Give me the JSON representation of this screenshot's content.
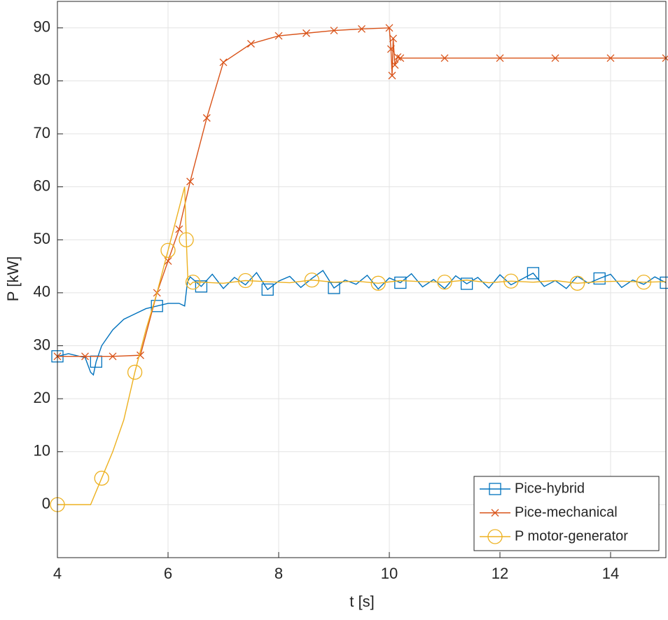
{
  "chart_data": {
    "type": "line",
    "xlabel": "t [s]",
    "ylabel": "P [kW]",
    "xlim": [
      4,
      15
    ],
    "xticks": [
      4,
      6,
      8,
      10,
      12,
      14
    ],
    "ylim": [
      -10,
      95
    ],
    "yticks": [
      0,
      10,
      20,
      30,
      40,
      50,
      60,
      70,
      80,
      90
    ],
    "grid": true,
    "legend": "lower right",
    "series": [
      {
        "name": "Pice-hybrid",
        "color": "#0072bd",
        "marker": "square",
        "x": [
          4,
          4.2,
          4.4,
          4.5,
          4.6,
          4.65,
          4.7,
          4.8,
          5,
          5.2,
          5.4,
          5.6,
          5.8,
          6,
          6.2,
          6.3,
          6.35,
          6.4,
          6.6,
          6.8,
          7.0,
          7.2,
          7.4,
          7.6,
          7.8,
          8.0,
          8.2,
          8.4,
          8.6,
          8.8,
          9.0,
          9.2,
          9.4,
          9.6,
          9.8,
          10.0,
          10.2,
          10.4,
          10.6,
          10.8,
          11.0,
          11.2,
          11.4,
          11.6,
          11.8,
          12.0,
          12.2,
          12.4,
          12.6,
          12.8,
          13.0,
          13.2,
          13.4,
          13.6,
          13.8,
          14.0,
          14.2,
          14.4,
          14.6,
          14.8,
          15.0
        ],
        "values": [
          28,
          28.5,
          28,
          27.8,
          25,
          24.5,
          27,
          30,
          33,
          35,
          36,
          37,
          37.5,
          38,
          38,
          37.5,
          42,
          43,
          41.2,
          43.5,
          40.8,
          42.9,
          41.5,
          43.8,
          40.6,
          42.2,
          43.1,
          41.0,
          42.7,
          44.2,
          40.9,
          42.4,
          41.6,
          43.3,
          40.7,
          42.8,
          41.9,
          43.6,
          41.1,
          42.5,
          40.8,
          43.2,
          41.7,
          42.9,
          40.9,
          43.4,
          41.5,
          42.6,
          43.7,
          41.2,
          42.3,
          40.8,
          43.1,
          41.8,
          42.7,
          43.5,
          41.0,
          42.4,
          41.6,
          43.0,
          41.9
        ]
      },
      {
        "name": "Pice-mechanical",
        "color": "#d95319",
        "marker": "x",
        "x": [
          4,
          4.5,
          5,
          5.5,
          5.8,
          6,
          6.2,
          6.4,
          6.7,
          7,
          7.5,
          8,
          8.5,
          9,
          9.5,
          10,
          10.03,
          10.05,
          10.07,
          10.1,
          10.15,
          10.2,
          11,
          12,
          13,
          14,
          15
        ],
        "values": [
          28,
          28,
          28,
          28.2,
          40,
          46,
          52,
          61,
          73,
          83.5,
          87,
          88.5,
          89,
          89.5,
          89.8,
          90,
          86,
          81,
          88,
          83,
          84.5,
          84.3,
          84.3,
          84.3,
          84.3,
          84.3,
          84.3
        ]
      },
      {
        "name": "P motor-generator",
        "color": "#edb120",
        "marker": "circle",
        "x": [
          4,
          4.2,
          4.6,
          4.8,
          5,
          5.2,
          5.4,
          5.6,
          5.8,
          6,
          6.2,
          6.3,
          6.33,
          6.36,
          6.4,
          6.45,
          6.6,
          7.0,
          7.4,
          7.8,
          8.2,
          8.6,
          9.0,
          9.4,
          9.8,
          10.2,
          10.6,
          11.0,
          11.4,
          11.8,
          12.2,
          12.6,
          13.0,
          13.4,
          13.8,
          14.2,
          14.6,
          15.0
        ],
        "values": [
          0,
          0,
          0,
          5,
          10,
          16,
          25,
          33,
          40,
          48,
          56,
          60,
          50,
          42,
          41.5,
          42,
          42.0,
          41.8,
          42.3,
          42.1,
          41.9,
          42.4,
          42.0,
          42.2,
          41.8,
          42.3,
          42.1,
          42.0,
          42.4,
          41.9,
          42.2,
          42.0,
          42.3,
          41.8,
          42.1,
          42.2,
          42.0,
          42.1
        ]
      }
    ]
  }
}
